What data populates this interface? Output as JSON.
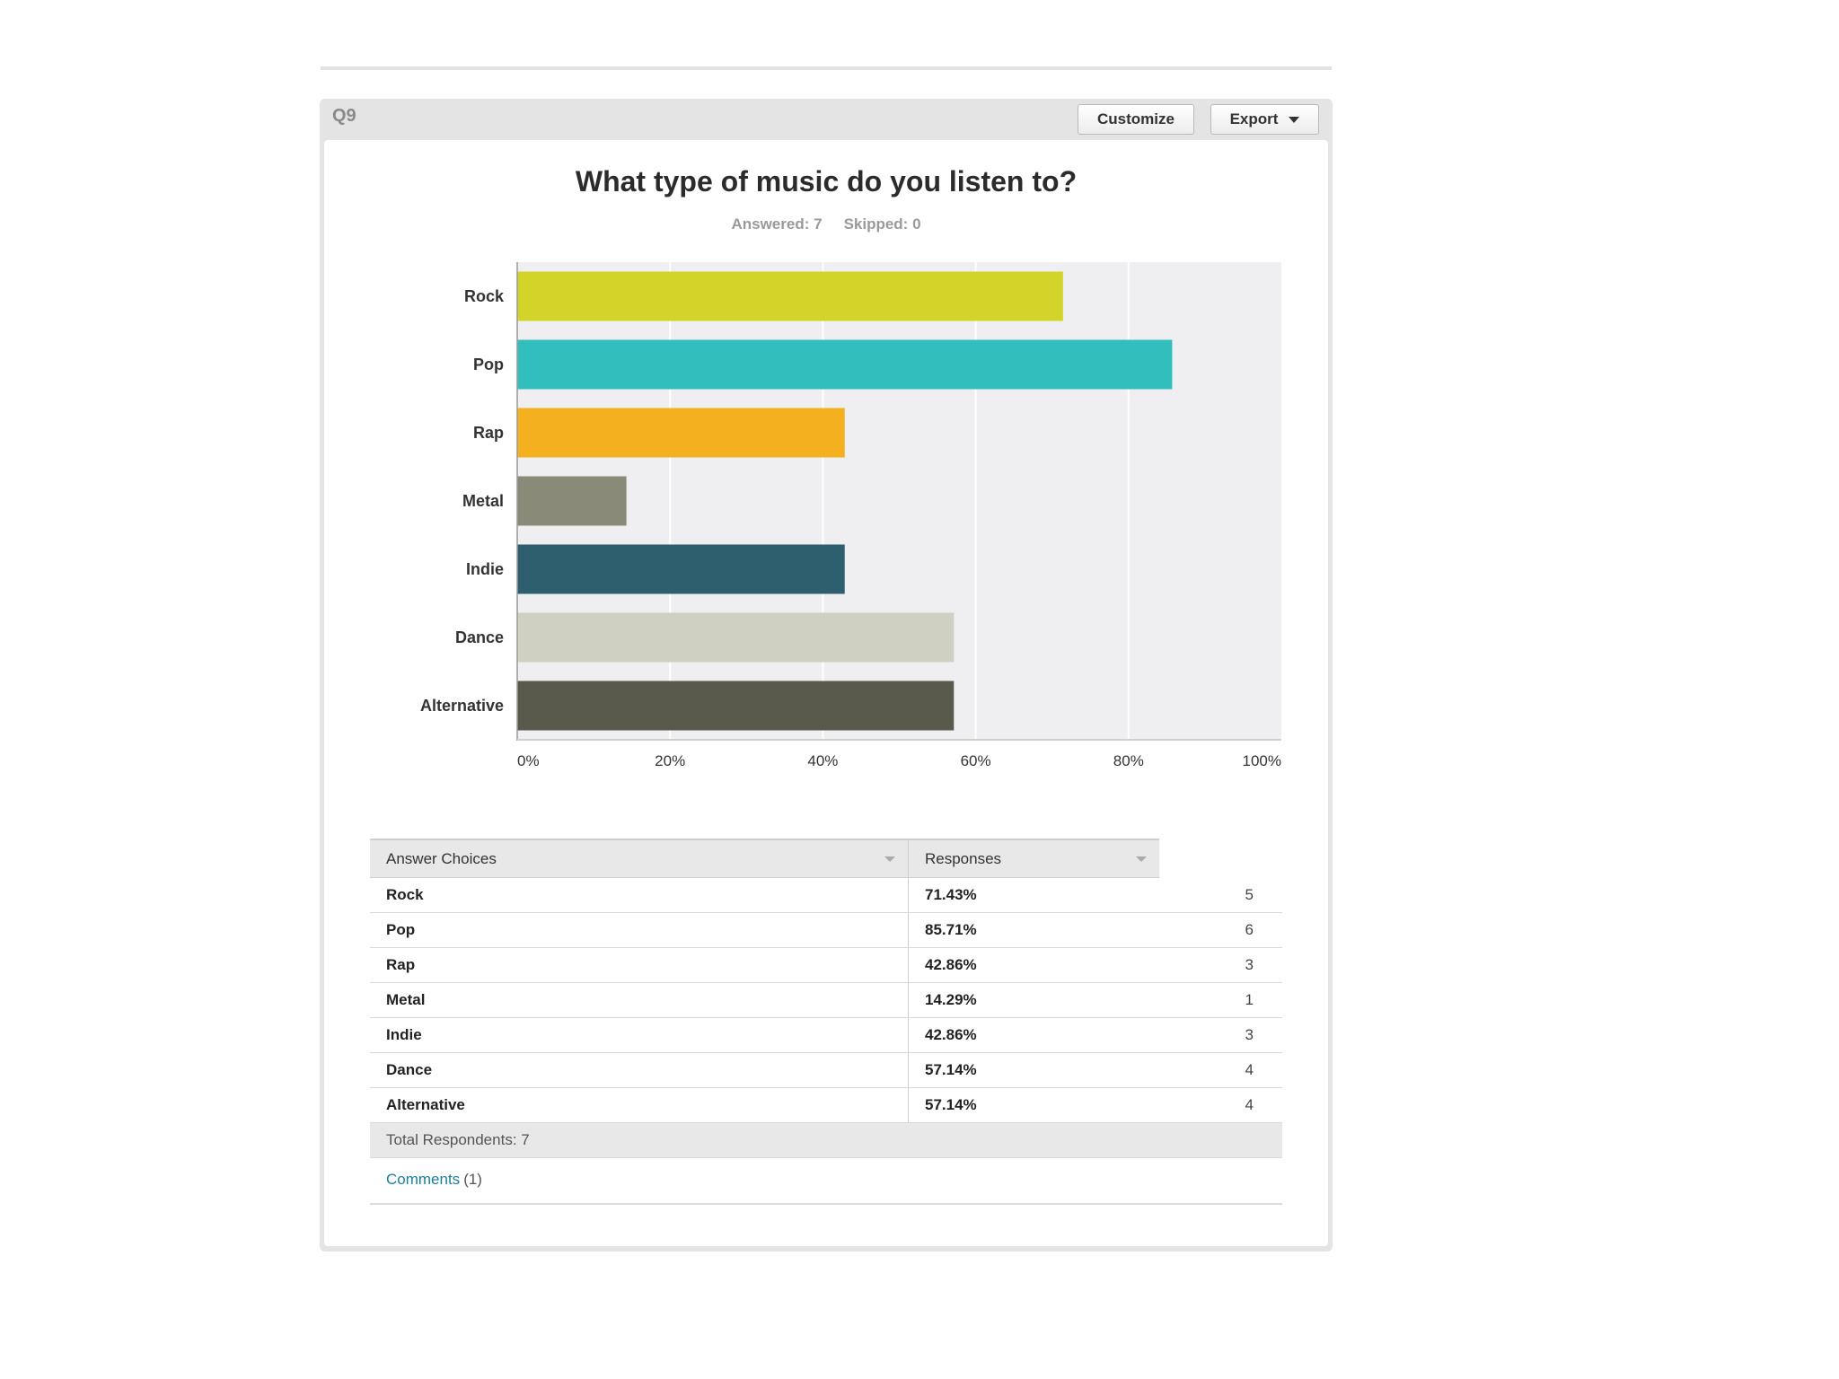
{
  "question": {
    "number": "Q9",
    "customize_label": "Customize",
    "export_label": "Export",
    "answered_label": "Answered: 7",
    "skipped_label": "Skipped: 0"
  },
  "chart_data": {
    "type": "bar",
    "orientation": "horizontal",
    "title": "What type of music do you listen to?",
    "categories": [
      "Rock",
      "Pop",
      "Rap",
      "Metal",
      "Indie",
      "Dance",
      "Alternative"
    ],
    "values": [
      71.43,
      85.71,
      42.86,
      14.29,
      42.86,
      57.14,
      57.14
    ],
    "colors": [
      "#d2d42a",
      "#33bebe",
      "#f5b01f",
      "#8a8a78",
      "#2e5f6f",
      "#cfcfc2",
      "#5a5a4c"
    ],
    "xlim": [
      0,
      100
    ],
    "xticks": [
      0,
      20,
      40,
      60,
      80,
      100
    ],
    "xtick_labels": [
      "0%",
      "20%",
      "40%",
      "60%",
      "80%",
      "100%"
    ],
    "grid": true,
    "xlabel": "",
    "ylabel": ""
  },
  "table": {
    "headers": [
      "Answer Choices",
      "Responses"
    ],
    "rows": [
      {
        "choice": "Rock",
        "percent": "71.43%",
        "count": "5"
      },
      {
        "choice": "Pop",
        "percent": "85.71%",
        "count": "6"
      },
      {
        "choice": "Rap",
        "percent": "42.86%",
        "count": "3"
      },
      {
        "choice": "Metal",
        "percent": "14.29%",
        "count": "1"
      },
      {
        "choice": "Indie",
        "percent": "42.86%",
        "count": "3"
      },
      {
        "choice": "Dance",
        "percent": "57.14%",
        "count": "4"
      },
      {
        "choice": "Alternative",
        "percent": "57.14%",
        "count": "4"
      }
    ],
    "total_label": "Total Respondents: 7"
  },
  "comments": {
    "link_label": "Comments",
    "count_label": "(1)"
  }
}
